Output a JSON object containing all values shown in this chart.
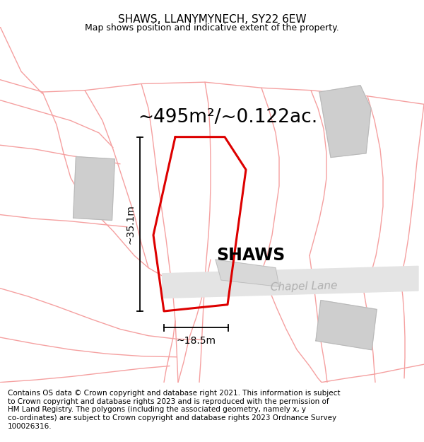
{
  "title": "SHAWS, LLANYMYNECH, SY22 6EW",
  "subtitle": "Map shows position and indicative extent of the property.",
  "area_label": "~495m²/~0.122ac.",
  "property_name": "SHAWS",
  "road_name": "Chapel Lane",
  "dim_width": "~18.5m",
  "dim_height": "~35.1m",
  "footer": "Contains OS data © Crown copyright and database right 2021. This information is subject\nto Crown copyright and database rights 2023 and is reproduced with the permission of\nHM Land Registry. The polygons (including the associated geometry, namely x, y\nco-ordinates) are subject to Crown copyright and database rights 2023 Ordnance Survey\n100026316.",
  "bg_color": "#ffffff",
  "pink_line_color": "#f5a0a0",
  "red_outline_color": "#dd0000",
  "gray_shape_color": "#cecece",
  "road_fill_color": "#e4e4e4",
  "road_text_color": "#b0b0b0",
  "title_fontsize": 11,
  "subtitle_fontsize": 9,
  "area_fontsize": 19,
  "property_fontsize": 17,
  "road_fontsize": 11,
  "dim_fontsize": 10,
  "footer_fontsize": 7.5
}
